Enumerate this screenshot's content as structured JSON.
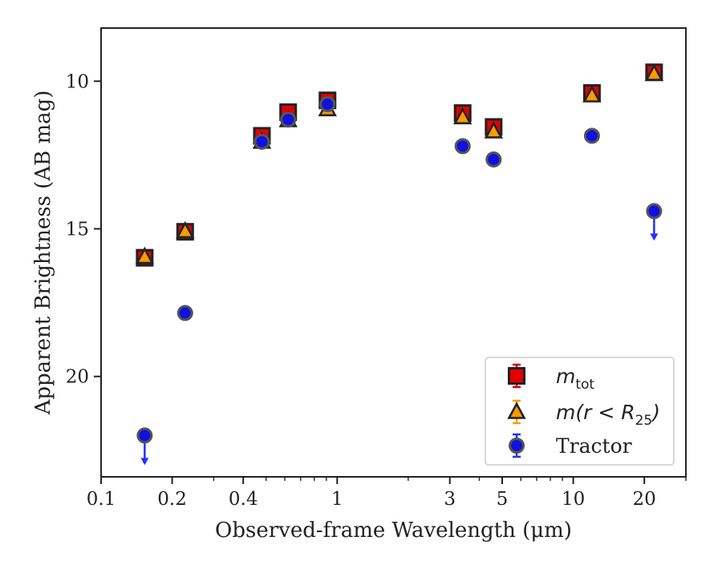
{
  "chart_data": {
    "type": "scatter",
    "xlabel": "Observed-frame Wavelength (μm)",
    "ylabel": "Apparent Brightness (AB mag)",
    "x_scale": "log",
    "xlim": [
      0.1,
      30
    ],
    "ylim": [
      23.4,
      8.2
    ],
    "y_inverted": true,
    "grid": false,
    "legend_position": "lower-right",
    "x_major_ticks": [
      "0.1",
      "0.2",
      "0.4",
      "1",
      "3",
      "5",
      "10",
      "20"
    ],
    "y_major_ticks": [
      "10",
      "15",
      "20"
    ],
    "series": [
      {
        "name": "m_tot",
        "legend_math": "m",
        "legend_sub": "tot",
        "marker": "square",
        "color": "#e30000",
        "error_color": "#d00000",
        "points": [
          {
            "x": 0.153,
            "y": 15.98
          },
          {
            "x": 0.227,
            "y": 15.1
          },
          {
            "x": 0.48,
            "y": 11.85
          },
          {
            "x": 0.62,
            "y": 11.05
          },
          {
            "x": 0.91,
            "y": 10.65
          },
          {
            "x": 3.4,
            "y": 11.08
          },
          {
            "x": 4.6,
            "y": 11.55
          },
          {
            "x": 12.0,
            "y": 10.4
          },
          {
            "x": 22.0,
            "y": 9.7
          }
        ]
      },
      {
        "name": "m(r < R25)",
        "legend_math": "m(r < R",
        "legend_sub": "25",
        "legend_tail": ")",
        "marker": "triangle",
        "color": "#ff9a00",
        "error_color": "#f0a000",
        "points": [
          {
            "x": 0.153,
            "y": 15.95
          },
          {
            "x": 0.227,
            "y": 15.08
          },
          {
            "x": 0.48,
            "y": 12.05
          },
          {
            "x": 0.62,
            "y": 11.32
          },
          {
            "x": 0.91,
            "y": 10.95
          },
          {
            "x": 3.4,
            "y": 11.22
          },
          {
            "x": 4.6,
            "y": 11.7
          },
          {
            "x": 12.0,
            "y": 10.48
          },
          {
            "x": 22.0,
            "y": 9.75
          }
        ]
      },
      {
        "name": "Tractor",
        "marker": "circle",
        "color": "#1010e0",
        "error_color": "#2030ff",
        "points": [
          {
            "x": 0.153,
            "y": 22.0,
            "upper_limit": true
          },
          {
            "x": 0.227,
            "y": 17.85
          },
          {
            "x": 0.48,
            "y": 12.05
          },
          {
            "x": 0.62,
            "y": 11.3
          },
          {
            "x": 0.91,
            "y": 10.78
          },
          {
            "x": 3.4,
            "y": 12.2
          },
          {
            "x": 4.6,
            "y": 12.65
          },
          {
            "x": 12.0,
            "y": 11.85
          },
          {
            "x": 22.0,
            "y": 14.4,
            "upper_limit": true
          }
        ]
      }
    ]
  }
}
